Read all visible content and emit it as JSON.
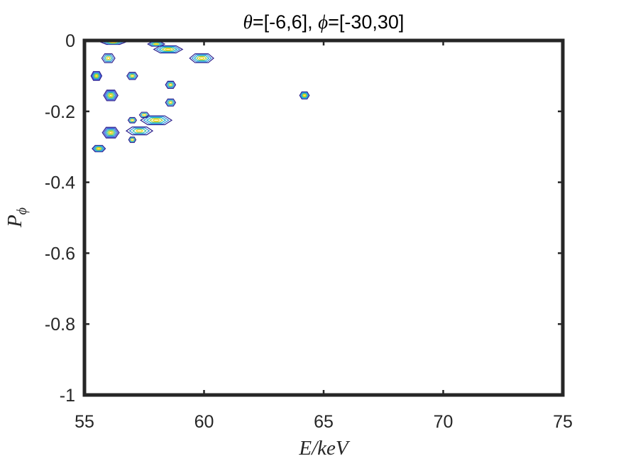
{
  "chart_data": {
    "type": "contour",
    "title_parts": [
      "θ",
      "=[-6,6], ",
      "ϕ",
      "=[-30,30]"
    ],
    "xlabel": "E/keV",
    "ylabel_main": "P",
    "ylabel_sub": "ϕ",
    "xlim": [
      55,
      75
    ],
    "ylim": [
      -1,
      0
    ],
    "xticks": [
      55,
      60,
      65,
      70,
      75
    ],
    "yticks": [
      -1,
      -0.8,
      -0.6,
      -0.4,
      -0.2,
      0
    ],
    "xtick_labels": [
      "55",
      "60",
      "65",
      "70",
      "75"
    ],
    "ytick_labels": [
      "-1",
      "-0.8",
      "-0.6",
      "-0.4",
      "-0.2",
      "0"
    ],
    "grid": false,
    "colors": [
      "#2a1e8c",
      "#3b55d6",
      "#2e8fe0",
      "#19b3c8",
      "#3cc69a",
      "#a6cf3a",
      "#f5d316"
    ],
    "blobs": [
      {
        "x": 55.5,
        "y": -0.1,
        "w": 0.45,
        "h": 0.025,
        "levels": 6
      },
      {
        "x": 56.1,
        "y": -0.155,
        "w": 0.6,
        "h": 0.03,
        "levels": 6
      },
      {
        "x": 56.1,
        "y": -0.26,
        "w": 0.7,
        "h": 0.03,
        "levels": 6
      },
      {
        "x": 55.6,
        "y": -0.305,
        "w": 0.55,
        "h": 0.018,
        "levels": 5
      },
      {
        "x": 56.0,
        "y": -0.05,
        "w": 0.55,
        "h": 0.025,
        "levels": 4
      },
      {
        "x": 57.0,
        "y": -0.1,
        "w": 0.45,
        "h": 0.02,
        "levels": 4
      },
      {
        "x": 58.6,
        "y": -0.125,
        "w": 0.42,
        "h": 0.02,
        "levels": 4
      },
      {
        "x": 58.6,
        "y": -0.175,
        "w": 0.42,
        "h": 0.02,
        "levels": 4
      },
      {
        "x": 57.0,
        "y": -0.225,
        "w": 0.35,
        "h": 0.015,
        "levels": 3
      },
      {
        "x": 57.5,
        "y": -0.21,
        "w": 0.4,
        "h": 0.015,
        "levels": 3
      },
      {
        "x": 57.0,
        "y": -0.28,
        "w": 0.3,
        "h": 0.015,
        "levels": 3
      },
      {
        "x": 58.0,
        "y": -0.225,
        "w": 1.3,
        "h": 0.025,
        "levels": 5
      },
      {
        "x": 57.3,
        "y": -0.255,
        "w": 1.1,
        "h": 0.022,
        "levels": 4
      },
      {
        "x": 59.9,
        "y": -0.05,
        "w": 1.0,
        "h": 0.025,
        "levels": 5
      },
      {
        "x": 58.5,
        "y": -0.025,
        "w": 1.2,
        "h": 0.02,
        "levels": 5
      },
      {
        "x": 64.2,
        "y": -0.155,
        "w": 0.4,
        "h": 0.02,
        "levels": 5
      },
      {
        "x": 56.2,
        "y": -0.005,
        "w": 1.0,
        "h": 0.012,
        "levels": 4
      },
      {
        "x": 58.0,
        "y": -0.01,
        "w": 0.7,
        "h": 0.012,
        "levels": 4
      }
    ]
  }
}
